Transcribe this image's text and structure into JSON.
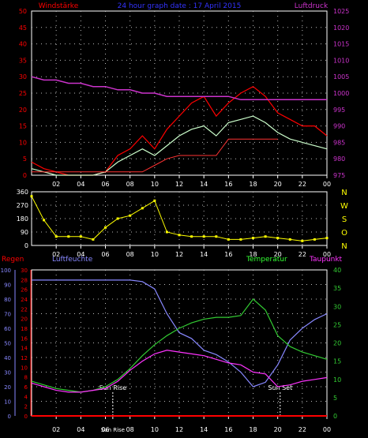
{
  "chart_data": [
    {
      "type": "line",
      "title": "24 hour graph date : 17 April 2015",
      "left_axis_label": "Windstärke",
      "right_axis_label": "Luftdruck",
      "ylim_left": [
        0,
        50
      ],
      "yticks_left": [
        "0",
        "5",
        "10",
        "15",
        "20",
        "25",
        "30",
        "35",
        "40",
        "45",
        "50"
      ],
      "ylim_right": [
        975,
        1025
      ],
      "yticks_right": [
        "975",
        "980",
        "985",
        "990",
        "995",
        "1000",
        "1005",
        "1010",
        "1015",
        "1020",
        "1025"
      ],
      "x_ticks": [
        "02",
        "04",
        "06",
        "08",
        "10",
        "12",
        "14",
        "16",
        "18",
        "20",
        "22",
        "00"
      ],
      "grid": true,
      "colors": {
        "gust": "#ff0000",
        "wind": "#ccffcc",
        "pressure": "#cc33cc",
        "avg": "#ff3333",
        "left_axis": "#ff0000",
        "right_axis": "#cc33cc"
      },
      "series": [
        {
          "key": "pressure",
          "x": [
            0,
            1,
            2,
            3,
            4,
            5,
            6,
            7,
            8,
            9,
            10,
            11,
            12,
            13,
            14,
            15,
            16,
            17,
            18,
            19,
            20,
            21,
            22,
            23,
            24
          ],
          "values": [
            1005,
            1004,
            1004,
            1003,
            1003,
            1002,
            1002,
            1001,
            1001,
            1000,
            1000,
            999,
            999,
            999,
            999,
            999,
            999,
            998,
            998,
            998,
            998,
            998,
            998,
            998,
            998
          ]
        },
        {
          "key": "gust",
          "x": [
            0,
            1,
            2,
            3,
            4,
            5,
            6,
            7,
            8,
            9,
            10,
            11,
            12,
            13,
            14,
            15,
            16,
            17,
            18,
            19,
            20,
            21,
            22,
            23,
            24
          ],
          "values": [
            4,
            2,
            1,
            0,
            0,
            0,
            1,
            6,
            8,
            12,
            8,
            14,
            18,
            22,
            24,
            18,
            22,
            25,
            27,
            24,
            19,
            17,
            15,
            15,
            12
          ]
        },
        {
          "key": "wind",
          "x": [
            0,
            1,
            2,
            3,
            4,
            5,
            6,
            7,
            8,
            9,
            10,
            11,
            12,
            13,
            14,
            15,
            16,
            17,
            18,
            19,
            20,
            21,
            22,
            23,
            24
          ],
          "values": [
            2,
            1,
            0,
            0,
            0,
            0,
            1,
            4,
            6,
            8,
            6,
            9,
            12,
            14,
            15,
            12,
            16,
            17,
            18,
            16,
            13,
            11,
            10,
            9,
            8
          ]
        },
        {
          "key": "avg",
          "x": [
            0,
            1,
            2,
            3,
            4,
            5,
            6,
            7,
            8,
            9,
            10,
            11,
            12,
            13,
            14,
            15,
            16,
            17,
            18,
            19,
            20
          ],
          "values": [
            1,
            1,
            1,
            1,
            1,
            1,
            1,
            1,
            1,
            1,
            3,
            5,
            6,
            6,
            6,
            6,
            11,
            11,
            11,
            11,
            11
          ]
        }
      ]
    },
    {
      "type": "scatter",
      "ylim": [
        0,
        360
      ],
      "yticks": [
        "0",
        "90",
        "180",
        "270",
        "360"
      ],
      "direction_labels": [
        "N",
        "W",
        "S",
        "O",
        "N"
      ],
      "x_ticks": [
        "02",
        "04",
        "06",
        "08",
        "10",
        "12",
        "14",
        "16",
        "18",
        "20",
        "22",
        "00"
      ],
      "colors": {
        "direction": "#ffff00"
      },
      "series": [
        {
          "key": "direction",
          "x": [
            0,
            1,
            2,
            3,
            4,
            5,
            6,
            7,
            8,
            9,
            10,
            11,
            12,
            13,
            14,
            15,
            16,
            17,
            18,
            19,
            20,
            21,
            22,
            23,
            24
          ],
          "values": [
            330,
            170,
            60,
            60,
            60,
            40,
            120,
            180,
            200,
            250,
            300,
            90,
            70,
            60,
            60,
            60,
            40,
            40,
            50,
            60,
            50,
            40,
            30,
            40,
            50
          ]
        }
      ]
    },
    {
      "type": "line",
      "labels_top": {
        "regen": "Regen",
        "luftfeuchte": "Luftfeuchte",
        "temperatur": "Temperatur",
        "taupunkt": "Taupunkt"
      },
      "ylim_humidity": [
        0,
        100
      ],
      "yticks_humidity": [
        "0",
        "10",
        "20",
        "30",
        "40",
        "50",
        "60",
        "70",
        "80",
        "90",
        "100"
      ],
      "ylim_rain": [
        0,
        30
      ],
      "yticks_rain": [
        "0",
        "2",
        "4",
        "6",
        "8",
        "10",
        "12",
        "14",
        "16",
        "18",
        "20",
        "22",
        "24",
        "26",
        "28",
        "30"
      ],
      "ylim_temp": [
        0,
        40
      ],
      "yticks_temp": [
        "0",
        "5",
        "10",
        "15",
        "20",
        "25",
        "30",
        "35",
        "40"
      ],
      "x_ticks": [
        "02",
        "04",
        "06",
        "Sun Rise",
        "08",
        "10",
        "12",
        "14",
        "16",
        "18",
        "20",
        "22",
        "00"
      ],
      "annotations": {
        "sunrise": "Sun Rise",
        "sunset": "Sun Set"
      },
      "sunrise_hour": 6.6,
      "sunset_hour": 20.2,
      "colors": {
        "rain": "#ff0000",
        "humidity": "#8888ff",
        "temperature": "#33cc33",
        "dewpoint": "#ff33ff",
        "regen_label": "#ff0000",
        "luftfeuchte_label": "#8888ff",
        "temperatur_label": "#33ff33",
        "taupunkt_label": "#ff33ff"
      },
      "series": [
        {
          "key": "rain",
          "x": [
            0,
            24
          ],
          "values": [
            0,
            0
          ]
        },
        {
          "key": "humidity",
          "x": [
            0,
            1,
            2,
            3,
            4,
            5,
            6,
            7,
            8,
            9,
            10,
            11,
            12,
            13,
            14,
            15,
            16,
            17,
            18,
            19,
            20,
            21,
            22,
            23,
            24
          ],
          "values": [
            93,
            93,
            93,
            93,
            93,
            93,
            93,
            93,
            93,
            92,
            87,
            70,
            57,
            53,
            45,
            42,
            37,
            30,
            20,
            23,
            35,
            52,
            60,
            66,
            70
          ]
        },
        {
          "key": "temperature",
          "x": [
            0,
            1,
            2,
            3,
            4,
            5,
            6,
            7,
            8,
            9,
            10,
            11,
            12,
            13,
            14,
            15,
            16,
            17,
            18,
            19,
            20,
            21,
            22,
            23,
            24
          ],
          "values": [
            9.5,
            8.5,
            7.5,
            7.0,
            6.5,
            7.0,
            8.0,
            10.0,
            13.0,
            16.5,
            19.5,
            22.0,
            24.0,
            25.5,
            26.5,
            27.0,
            27.0,
            27.5,
            32.0,
            29.0,
            22.0,
            19.0,
            17.5,
            16.5,
            15.5
          ]
        },
        {
          "key": "dewpoint",
          "x": [
            0,
            1,
            2,
            3,
            4,
            5,
            6,
            7,
            8,
            9,
            10,
            11,
            12,
            13,
            14,
            15,
            16,
            17,
            18,
            19,
            20,
            21,
            22,
            23,
            24
          ],
          "values": [
            9.0,
            8.0,
            7.0,
            6.5,
            6.5,
            7.0,
            7.5,
            9.5,
            12.5,
            15.0,
            17.0,
            18.0,
            17.5,
            17.0,
            16.5,
            15.5,
            14.5,
            14.0,
            12.0,
            11.5,
            8.0,
            8.5,
            9.5,
            10.0,
            10.5
          ]
        }
      ]
    }
  ]
}
